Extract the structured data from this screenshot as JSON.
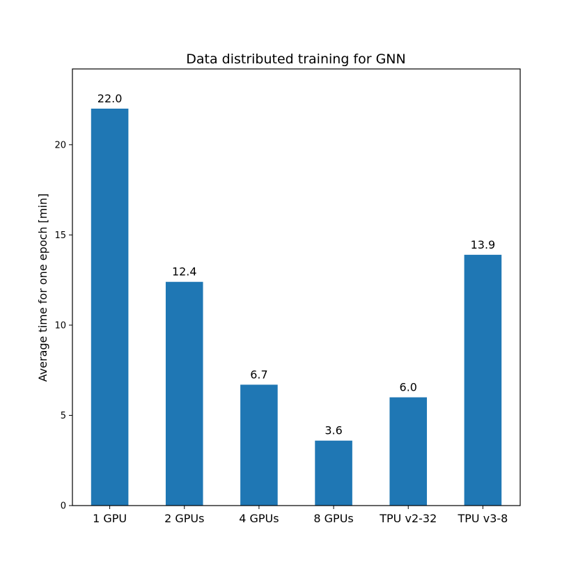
{
  "chart_data": {
    "type": "bar",
    "title": "Data distributed training for GNN",
    "xlabel": "",
    "ylabel": "Average time for one epoch [min]",
    "categories": [
      "1 GPU",
      "2 GPUs",
      "4 GPUs",
      "8 GPUs",
      "TPU v2-32",
      "TPU v3-8"
    ],
    "values": [
      22.0,
      12.4,
      6.7,
      3.6,
      6.0,
      13.9
    ],
    "value_labels": [
      "22.0",
      "12.4",
      "6.7",
      "3.6",
      "6.0",
      "13.9"
    ],
    "ylim": [
      0,
      24.2
    ],
    "yticks": [
      0,
      5,
      10,
      15,
      20
    ],
    "ytick_labels": [
      "0",
      "5",
      "10",
      "15",
      "20"
    ],
    "bar_color": "#1f77b4",
    "grid": false,
    "legend": "none"
  }
}
